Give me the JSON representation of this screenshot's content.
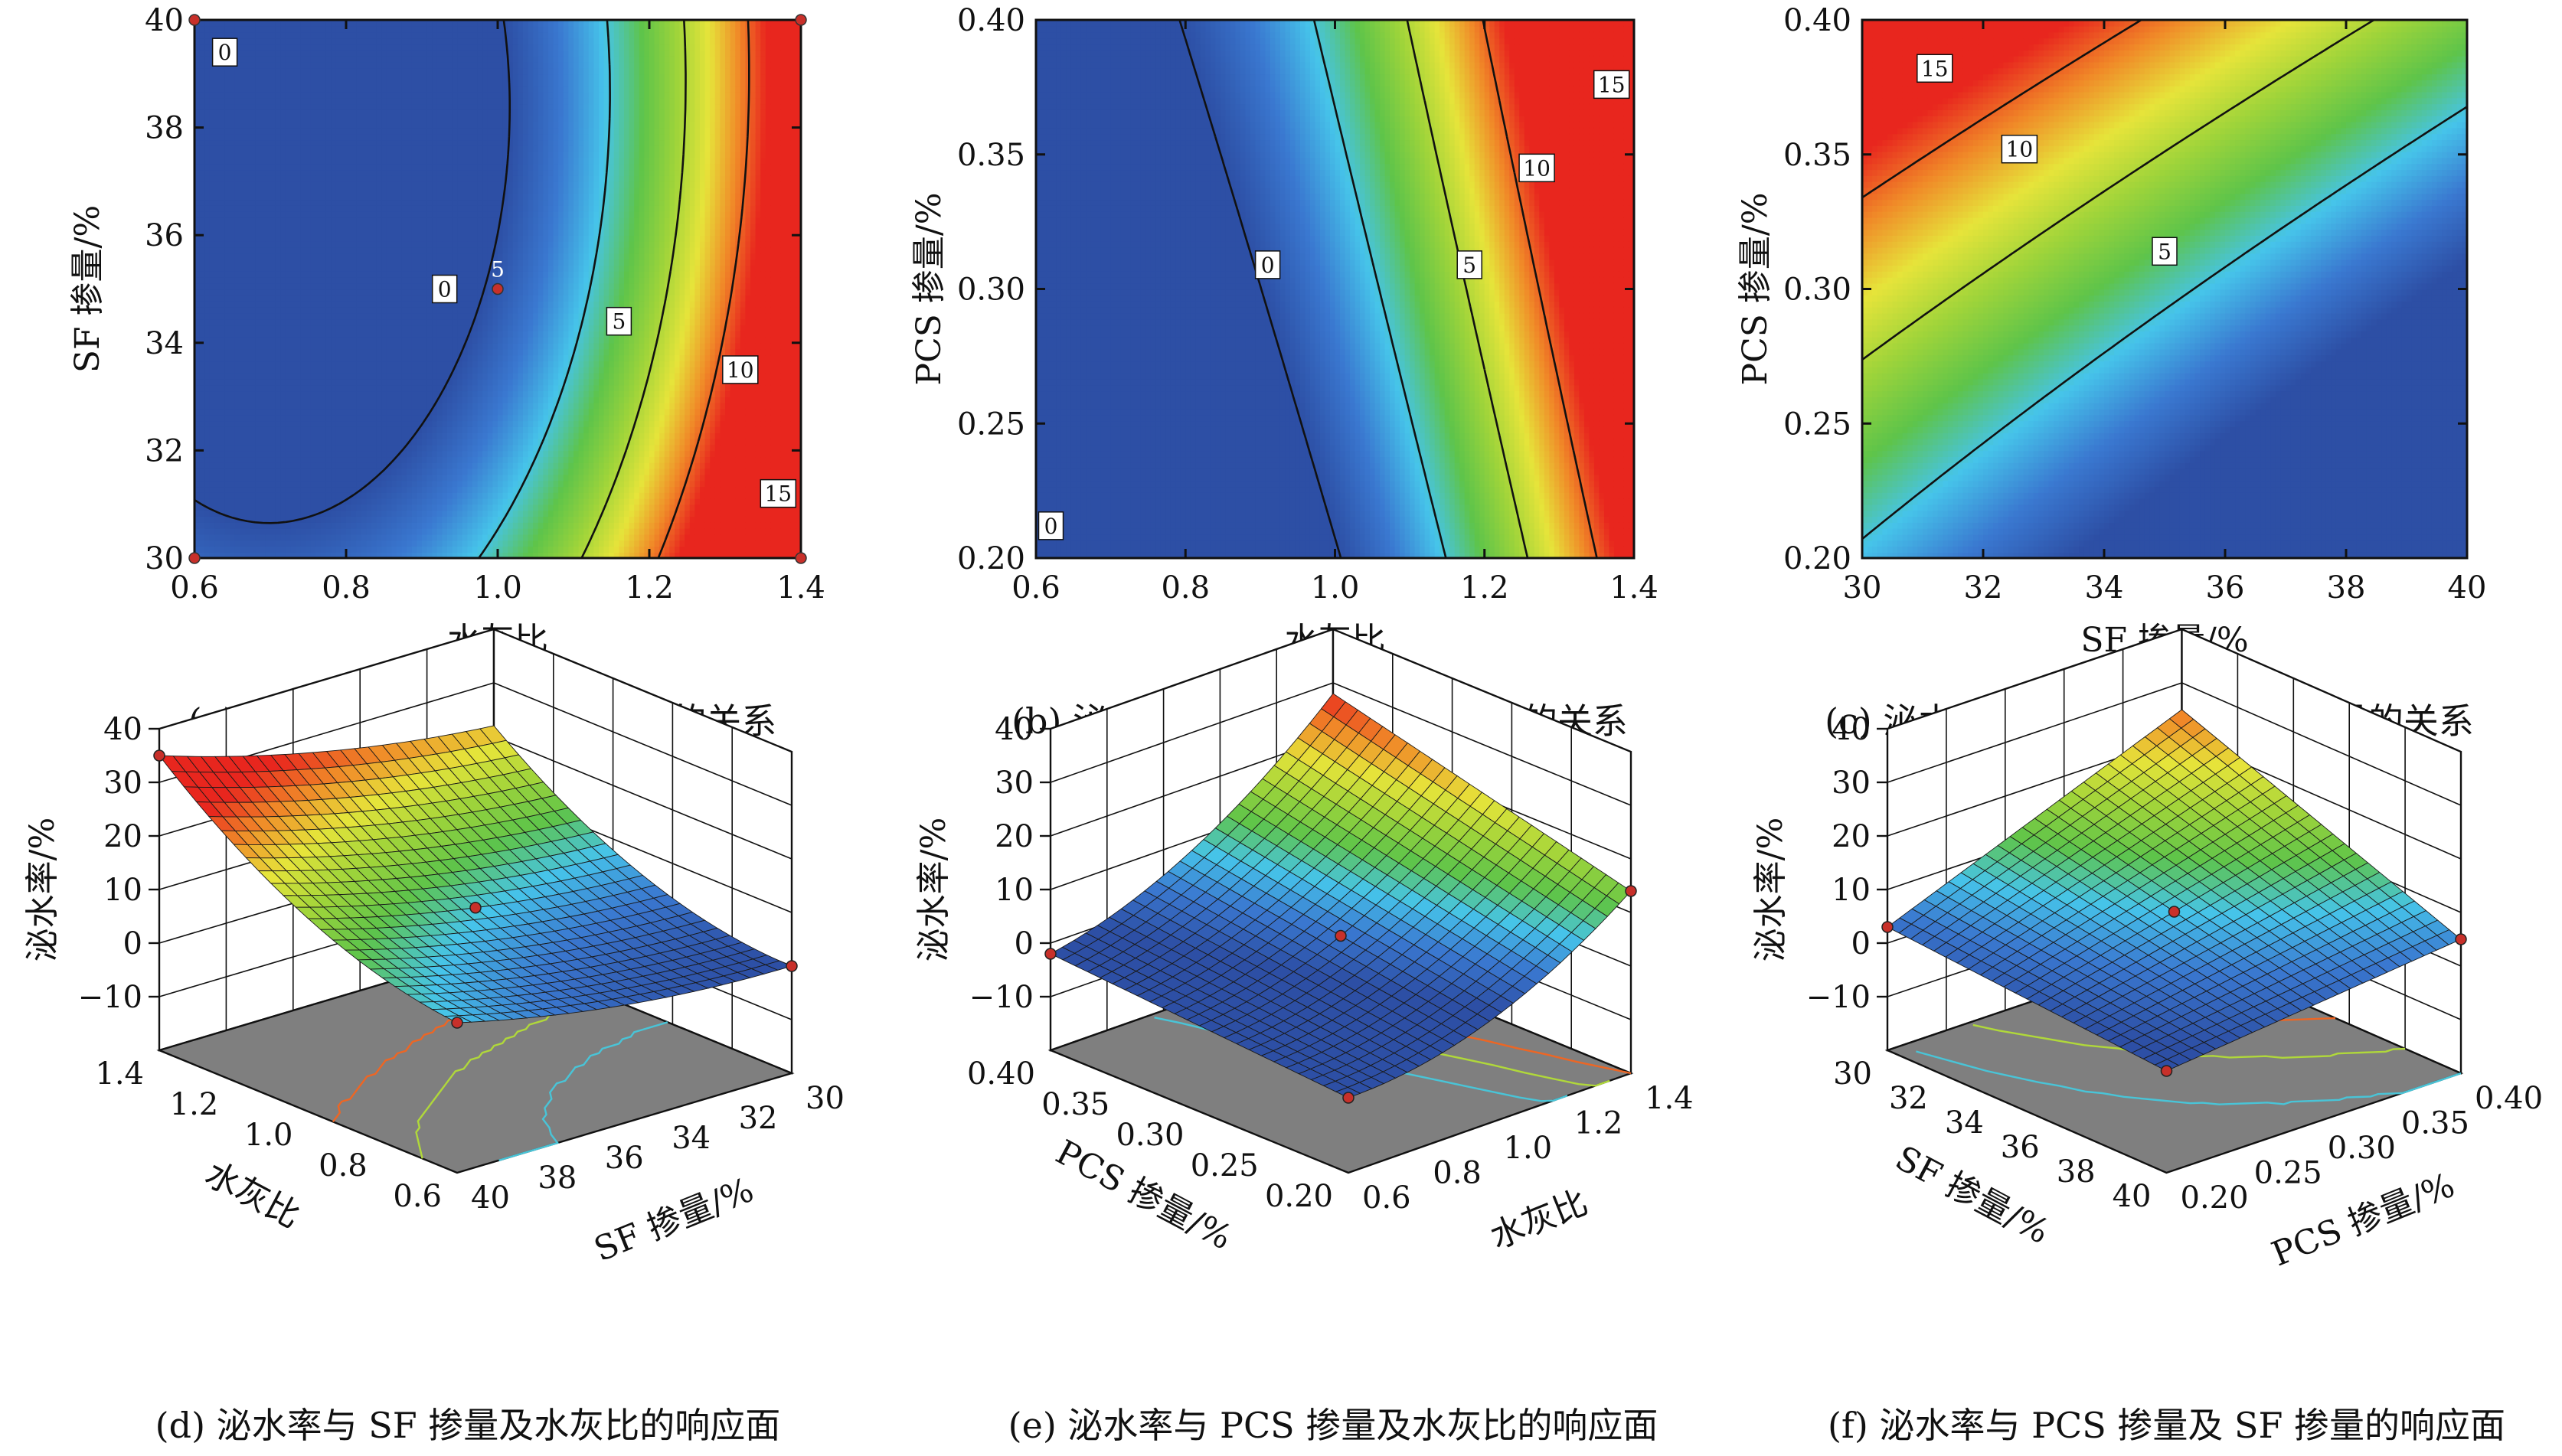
{
  "panels": [
    {
      "id": "a",
      "type": "heatmap",
      "caption": "(a) 泌水率与 SF 掺量及水灰比的关系",
      "xlabel": "水灰比",
      "ylabel": "SF 掺量/%",
      "xlim": [
        0.6,
        1.4
      ],
      "ylim": [
        30,
        40
      ],
      "xticks": [
        "0.6",
        "0.8",
        "1.0",
        "1.2",
        "1.4"
      ],
      "yticks": [
        "30",
        "32",
        "34",
        "36",
        "38",
        "40"
      ],
      "contour_levels": [
        0,
        5,
        10,
        15
      ],
      "contour_labels": [
        {
          "text": "0",
          "x": 0.64,
          "y": 39.4
        },
        {
          "text": "0",
          "x": 0.93,
          "y": 35.0
        },
        {
          "text": "5",
          "x": 1.16,
          "y": 34.4
        },
        {
          "text": "10",
          "x": 1.32,
          "y": 33.5
        },
        {
          "text": "15",
          "x": 1.37,
          "y": 31.2
        }
      ],
      "design_points": [
        {
          "x": 0.6,
          "y": 40
        },
        {
          "x": 1.4,
          "y": 40
        },
        {
          "x": 0.6,
          "y": 30
        },
        {
          "x": 1.4,
          "y": 30
        },
        {
          "x": 1.0,
          "y": 35,
          "label": "5"
        }
      ]
    },
    {
      "id": "b",
      "type": "heatmap",
      "caption": "(b) 泌水率与 PCS 掺量及水灰比的关系",
      "xlabel": "水灰比",
      "ylabel": "PCS 掺量/%",
      "xlim": [
        0.6,
        1.4
      ],
      "ylim": [
        0.2,
        0.4
      ],
      "xticks": [
        "0.6",
        "0.8",
        "1.0",
        "1.2",
        "1.4"
      ],
      "yticks": [
        "0.20",
        "0.25",
        "0.30",
        "0.35",
        "0.40"
      ],
      "contour_levels": [
        0,
        5,
        10,
        15
      ],
      "contour_labels": [
        {
          "text": "0",
          "x": 0.62,
          "y": 0.212
        },
        {
          "text": "0",
          "x": 0.91,
          "y": 0.309
        },
        {
          "text": "5",
          "x": 1.18,
          "y": 0.309
        },
        {
          "text": "10",
          "x": 1.27,
          "y": 0.345
        },
        {
          "text": "15",
          "x": 1.37,
          "y": 0.376
        }
      ]
    },
    {
      "id": "c",
      "type": "heatmap",
      "caption": "(c) 泌水率与 PCS 掺量及 SF 掺量的关系",
      "xlabel": "SF 掺量/%",
      "ylabel": "PCS 掺量/%",
      "xlim": [
        30,
        40
      ],
      "ylim": [
        0.2,
        0.4
      ],
      "xticks": [
        "30",
        "32",
        "34",
        "36",
        "38",
        "40"
      ],
      "yticks": [
        "0.20",
        "0.25",
        "0.30",
        "0.35",
        "0.40"
      ],
      "contour_levels": [
        5,
        10,
        15
      ],
      "contour_labels": [
        {
          "text": "15",
          "x": 31.2,
          "y": 0.382
        },
        {
          "text": "10",
          "x": 32.6,
          "y": 0.352
        },
        {
          "text": "5",
          "x": 35.0,
          "y": 0.314
        }
      ]
    },
    {
      "id": "d",
      "type": "surface3d",
      "caption": "(d) 泌水率与 SF 掺量及水灰比的响应面",
      "zlabel": "泌水率/%",
      "zlim": [
        -20,
        40
      ],
      "zticks": [
        "−10",
        "0",
        "10",
        "20",
        "30",
        "40"
      ],
      "left_axis": {
        "label": "水灰比",
        "ticks": [
          "1.4",
          "1.2",
          "1.0",
          "0.8",
          "0.6"
        ]
      },
      "right_axis": {
        "label": "SF 掺量/%",
        "ticks": [
          "40",
          "38",
          "36",
          "34",
          "32",
          "30"
        ]
      }
    },
    {
      "id": "e",
      "type": "surface3d",
      "caption": "(e) 泌水率与 PCS 掺量及水灰比的响应面",
      "zlabel": "泌水率/%",
      "zlim": [
        -20,
        40
      ],
      "zticks": [
        "−10",
        "0",
        "10",
        "20",
        "30",
        "40"
      ],
      "left_axis": {
        "label": "PCS 掺量/%",
        "ticks": [
          "0.40",
          "0.35",
          "0.30",
          "0.25",
          "0.20"
        ]
      },
      "right_axis": {
        "label": "水灰比",
        "ticks": [
          "0.6",
          "0.8",
          "1.0",
          "1.2",
          "1.4"
        ]
      }
    },
    {
      "id": "f",
      "type": "surface3d",
      "caption": "(f) 泌水率与 PCS 掺量及 SF 掺量的响应面",
      "zlabel": "泌水率/%",
      "zlim": [
        -20,
        40
      ],
      "zticks": [
        "−10",
        "0",
        "10",
        "20",
        "30",
        "40"
      ],
      "left_axis": {
        "label": "SF 掺量/%",
        "ticks": [
          "30",
          "32",
          "34",
          "36",
          "38",
          "40"
        ]
      },
      "right_axis": {
        "label": "PCS 掺量/%",
        "ticks": [
          "0.20",
          "0.25",
          "0.30",
          "0.35",
          "0.40"
        ]
      }
    }
  ],
  "colors": {
    "colormap": [
      "#2d4fa5",
      "#3a78d0",
      "#46c4ea",
      "#5ec44a",
      "#9fd43a",
      "#e6e43a",
      "#f08a28",
      "#e8261e"
    ],
    "floor": "#7f7f7f",
    "design_point": "#c8302a"
  }
}
